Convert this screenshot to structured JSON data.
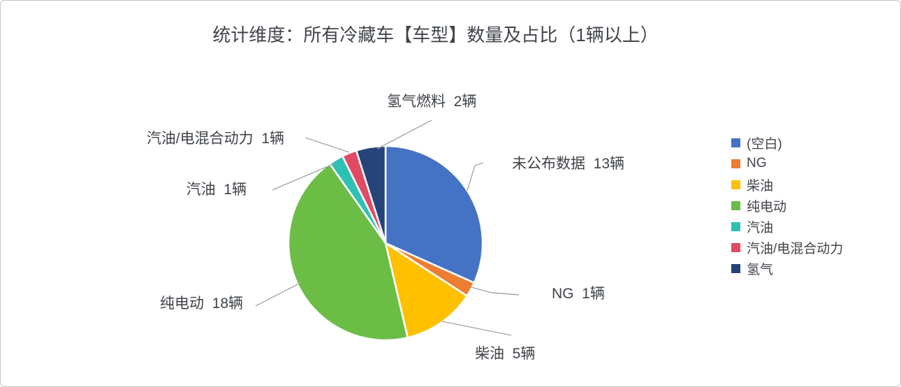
{
  "title": "统计维度：所有冷藏车【车型】数量及占比（1辆以上）",
  "chart_data": {
    "type": "pie",
    "title": "统计维度：所有冷藏车【车型】数量及占比（1辆以上）",
    "total": 41,
    "unit": "辆",
    "start_angle_deg": 0,
    "direction": "clockwise",
    "legend_position": "right",
    "slice_gap_color": "#ffffff",
    "leader_line_color": "#a6a6a6",
    "slices": [
      {
        "key": "blank",
        "name": "(空白)",
        "callout_label": "未公布数据",
        "value": 13,
        "color": "#4472C4"
      },
      {
        "key": "ng",
        "name": "NG",
        "callout_label": "NG",
        "value": 1,
        "color": "#ED7D31"
      },
      {
        "key": "diesel",
        "name": "柴油",
        "callout_label": "柴油",
        "value": 5,
        "color": "#FFC000"
      },
      {
        "key": "electric",
        "name": "纯电动",
        "callout_label": "纯电动",
        "value": 18,
        "color": "#6BBD45"
      },
      {
        "key": "gasoline",
        "name": "汽油",
        "callout_label": "汽油",
        "value": 1,
        "color": "#2FC0B4"
      },
      {
        "key": "hybrid",
        "name": "汽油/电混合动力",
        "callout_label": "汽油/电混合动力",
        "value": 1,
        "color": "#E04A62"
      },
      {
        "key": "hydrogen",
        "name": "氢气",
        "callout_label": "氢气燃料",
        "value": 2,
        "color": "#264478"
      }
    ]
  },
  "callouts": {
    "unpublished": "未公布数据  13辆",
    "ng": "NG  1辆",
    "diesel": "柴油  5辆",
    "electric": "纯电动  18辆",
    "gasoline": "汽油  1辆",
    "hybrid": "汽油/电混合动力  1辆",
    "hydrogen": "氢气燃料  2辆"
  }
}
